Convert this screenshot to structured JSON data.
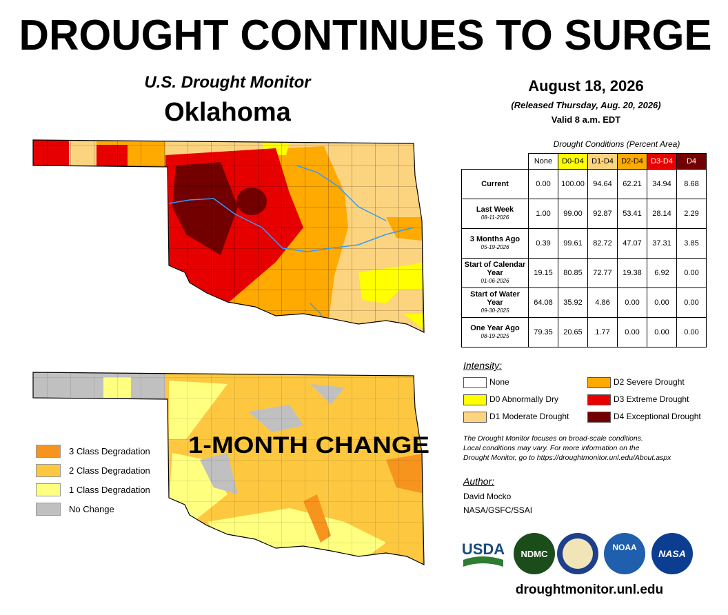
{
  "title": "DROUGHT CONTINUES TO SURGE",
  "map_header": {
    "name": "U.S. Drought Monitor",
    "state": "Oklahoma"
  },
  "date": {
    "map_date": "August 18, 2026",
    "released": "(Released Thursday, Aug. 20, 2026)",
    "valid": "Valid 8 a.m. EDT"
  },
  "table": {
    "caption": "Drought Conditions (Percent Area)",
    "columns": [
      "None",
      "D0-D4",
      "D1-D4",
      "D2-D4",
      "D3-D4",
      "D4"
    ],
    "rows": [
      {
        "label": "Current",
        "values": [
          "0.00",
          "100.00",
          "94.64",
          "62.21",
          "34.94",
          "8.68"
        ]
      },
      {
        "label": "Last Week",
        "date": "08-11-2026",
        "values": [
          "1.00",
          "99.00",
          "92.87",
          "53.41",
          "28.14",
          "2.29"
        ]
      },
      {
        "label": "3 Months Ago",
        "date": "05-19-2026",
        "values": [
          "0.39",
          "99.61",
          "82.72",
          "47.07",
          "37.31",
          "3.85"
        ]
      },
      {
        "label": "Start of Calendar Year",
        "date": "01-06-2026",
        "values": [
          "19.15",
          "80.85",
          "72.77",
          "19.38",
          "6.92",
          "0.00"
        ]
      },
      {
        "label": "Start of Water Year",
        "date": "09-30-2025",
        "values": [
          "64.08",
          "35.92",
          "4.86",
          "0.00",
          "0.00",
          "0.00"
        ]
      },
      {
        "label": "One Year Ago",
        "date": "08-19-2025",
        "values": [
          "79.35",
          "20.65",
          "1.77",
          "0.00",
          "0.00",
          "0.00"
        ]
      }
    ]
  },
  "intensity": {
    "title": "Intensity:",
    "items": [
      {
        "label": "None",
        "color": "#ffffff"
      },
      {
        "label": "D0 Abnormally Dry",
        "color": "#ffff00"
      },
      {
        "label": "D1 Moderate Drought",
        "color": "#fcd37f"
      },
      {
        "label": "D2 Severe Drought",
        "color": "#ffaa00"
      },
      {
        "label": "D3 Extreme Drought",
        "color": "#e60000"
      },
      {
        "label": "D4 Exceptional Drought",
        "color": "#730000"
      }
    ]
  },
  "note": [
    "The Drought Monitor focuses on broad-scale conditions.",
    "Local conditions may vary. For more information on the",
    "Drought Monitor, go to https://droughtmonitor.unl.edu/About.aspx"
  ],
  "author": {
    "title": "Author:",
    "name": "David Mocko",
    "org": "NASA/GSFC/SSAI"
  },
  "change_map": {
    "title": "1-MONTH CHANGE",
    "legend": [
      {
        "label": "3 Class Degradation",
        "color": "#f7941d"
      },
      {
        "label": "2 Class Degradation",
        "color": "#fdc840"
      },
      {
        "label": "1 Class Degradation",
        "color": "#ffff80"
      },
      {
        "label": "No Change",
        "color": "#c0c0c0"
      }
    ]
  },
  "logos": [
    "USDA",
    "NDMC",
    "NOAA",
    "NASA"
  ],
  "url": "droughtmonitor.unl.edu"
}
